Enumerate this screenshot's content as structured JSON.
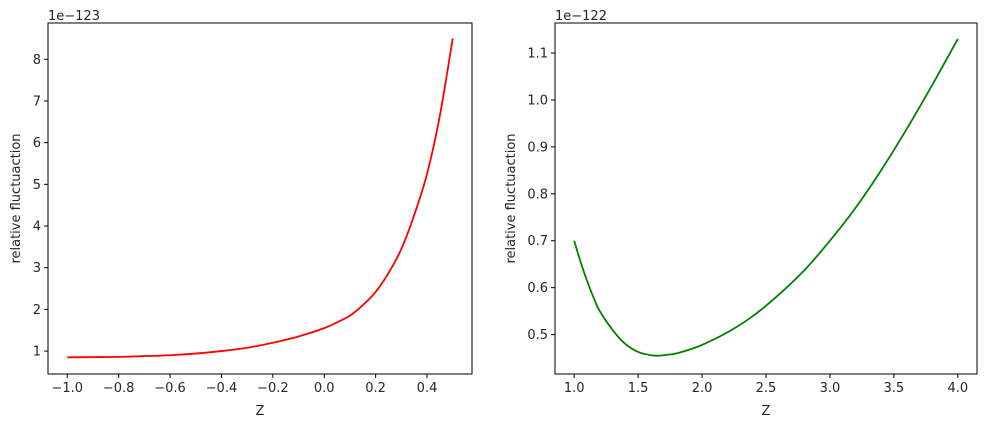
{
  "chart_data": [
    {
      "type": "line",
      "xlabel": "Z",
      "ylabel": "relative fluctuaction",
      "offset_text": "1e−123",
      "xlim": [
        -1.075,
        0.575
      ],
      "ylim": [
        0.45,
        8.87
      ],
      "x_ticks": [
        -1.0,
        -0.8,
        -0.6,
        -0.4,
        -0.2,
        0.0,
        0.2,
        0.4
      ],
      "x_tick_labels": [
        "−1.0",
        "−0.8",
        "−0.6",
        "−0.4",
        "−0.2",
        "0.0",
        "0.2",
        "0.4"
      ],
      "y_ticks": [
        1,
        2,
        3,
        4,
        5,
        6,
        7,
        8
      ],
      "y_tick_labels": [
        "1",
        "2",
        "3",
        "4",
        "5",
        "6",
        "7",
        "8"
      ],
      "grid": false,
      "series": [
        {
          "color": "#ff0000",
          "x": [
            -1.0,
            -0.9,
            -0.8,
            -0.7,
            -0.6,
            -0.5,
            -0.4,
            -0.3,
            -0.2,
            -0.1,
            0.0,
            0.05,
            0.1,
            0.15,
            0.2,
            0.25,
            0.3,
            0.35,
            0.4,
            0.45,
            0.5
          ],
          "y": [
            0.85,
            0.855,
            0.86,
            0.88,
            0.9,
            0.94,
            1.0,
            1.08,
            1.2,
            1.35,
            1.55,
            1.69,
            1.85,
            2.1,
            2.42,
            2.87,
            3.45,
            4.26,
            5.25,
            6.65,
            8.5
          ]
        }
      ]
    },
    {
      "type": "line",
      "xlabel": "Z",
      "ylabel": "relative fluctuaction",
      "offset_text": "1e−122",
      "xlim": [
        0.85,
        4.15
      ],
      "ylim": [
        0.416,
        1.164
      ],
      "x_ticks": [
        1.0,
        1.5,
        2.0,
        2.5,
        3.0,
        3.5,
        4.0
      ],
      "x_tick_labels": [
        "1.0",
        "1.5",
        "2.0",
        "2.5",
        "3.0",
        "3.5",
        "4.0"
      ],
      "y_ticks": [
        0.5,
        0.6,
        0.7,
        0.8,
        0.9,
        1.0,
        1.1
      ],
      "y_tick_labels": [
        "0.5",
        "0.6",
        "0.7",
        "0.8",
        "0.9",
        "1.0",
        "1.1"
      ],
      "grid": false,
      "series": [
        {
          "color": "#008000",
          "x": [
            1.0,
            1.05,
            1.1,
            1.15,
            1.2,
            1.3,
            1.4,
            1.5,
            1.6,
            1.65,
            1.7,
            1.8,
            1.9,
            2.0,
            2.2,
            2.4,
            2.6,
            2.8,
            3.0,
            3.2,
            3.4,
            3.6,
            3.8,
            4.0
          ],
          "y": [
            0.7,
            0.655,
            0.615,
            0.58,
            0.55,
            0.51,
            0.48,
            0.463,
            0.456,
            0.455,
            0.456,
            0.46,
            0.468,
            0.478,
            0.505,
            0.54,
            0.585,
            0.637,
            0.7,
            0.77,
            0.85,
            0.938,
            1.032,
            1.13
          ]
        }
      ]
    }
  ]
}
